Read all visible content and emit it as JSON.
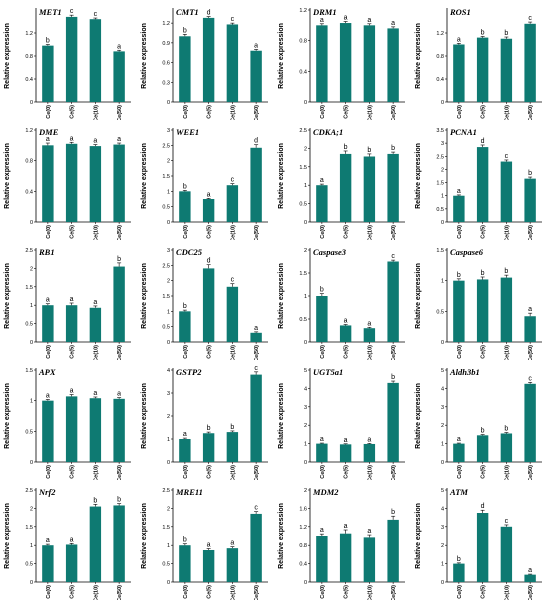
{
  "figure": {
    "ylabel": "Relative expression",
    "categories": [
      "Ce(0)",
      "Ce(5)",
      "Ce(10)",
      "Ce(50)"
    ],
    "bar_color": "#0e7a72"
  },
  "chart_data": [
    {
      "type": "bar",
      "title": "MET1",
      "categories": [
        "Ce(0)",
        "Ce(5)",
        "Ce(10)",
        "Ce(50)"
      ],
      "values": [
        0.98,
        1.48,
        1.44,
        0.88
      ],
      "errors": [
        0.02,
        0.03,
        0.02,
        0.02
      ],
      "letters": [
        "b",
        "c",
        "c",
        "a"
      ],
      "ylim": [
        0,
        1.6
      ],
      "yticks": [
        0,
        0.4,
        0.8,
        1.2
      ],
      "ylabel": "Relative expression"
    },
    {
      "type": "bar",
      "title": "CMT1",
      "categories": [
        "Ce(0)",
        "Ce(5)",
        "Ce(10)",
        "Ce(50)"
      ],
      "values": [
        1.0,
        1.28,
        1.18,
        0.78
      ],
      "errors": [
        0.03,
        0.02,
        0.02,
        0.02
      ],
      "letters": [
        "b",
        "d",
        "c",
        "a"
      ],
      "ylim": [
        0,
        1.4
      ],
      "yticks": [
        0,
        0.3,
        0.6,
        0.9,
        1.2
      ],
      "ylabel": "Relative expression"
    },
    {
      "type": "bar",
      "title": "DRM1",
      "categories": [
        "Ce(0)",
        "Ce(5)",
        "Ce(10)",
        "Ce(50)"
      ],
      "values": [
        1.0,
        1.03,
        1.0,
        0.96
      ],
      "errors": [
        0.02,
        0.02,
        0.02,
        0.02
      ],
      "letters": [
        "a",
        "a",
        "a",
        "a"
      ],
      "ylim": [
        0,
        1.2
      ],
      "yticks": [
        0,
        0.4,
        0.8,
        1.2
      ],
      "ylabel": "Relative expression"
    },
    {
      "type": "bar",
      "title": "ROS1",
      "categories": [
        "Ce(0)",
        "Ce(5)",
        "Ce(10)",
        "Ce(50)"
      ],
      "values": [
        1.0,
        1.12,
        1.1,
        1.36
      ],
      "errors": [
        0.02,
        0.02,
        0.03,
        0.03
      ],
      "letters": [
        "a",
        "b",
        "b",
        "c"
      ],
      "ylim": [
        0,
        1.6
      ],
      "yticks": [
        0,
        0.4,
        0.8,
        1.2
      ],
      "ylabel": "Relative expression"
    },
    {
      "type": "bar",
      "title": "DME",
      "categories": [
        "Ce(0)",
        "Ce(5)",
        "Ce(10)",
        "Ce(50)"
      ],
      "values": [
        1.0,
        1.02,
        0.99,
        1.01
      ],
      "errors": [
        0.03,
        0.02,
        0.02,
        0.02
      ],
      "letters": [
        "a",
        "a",
        "a",
        "a"
      ],
      "ylim": [
        0,
        1.2
      ],
      "yticks": [
        0,
        0.4,
        0.8,
        1.2
      ],
      "ylabel": "Relative expression"
    },
    {
      "type": "bar",
      "title": "WEE1",
      "categories": [
        "Ce(0)",
        "Ce(5)",
        "Ce(10)",
        "Ce(50)"
      ],
      "values": [
        1.0,
        0.75,
        1.2,
        2.42
      ],
      "errors": [
        0.03,
        0.02,
        0.05,
        0.1
      ],
      "letters": [
        "b",
        "a",
        "c",
        "d"
      ],
      "ylim": [
        0,
        3.0
      ],
      "yticks": [
        0,
        0.5,
        1.0,
        1.5,
        2.0,
        2.5,
        3.0
      ],
      "ylabel": "Relative expression"
    },
    {
      "type": "bar",
      "title": "CDKA;1",
      "categories": [
        "Ce(0)",
        "Ce(5)",
        "Ce(10)",
        "Ce(50)"
      ],
      "values": [
        1.0,
        1.85,
        1.78,
        1.85
      ],
      "errors": [
        0.03,
        0.08,
        0.07,
        0.05
      ],
      "letters": [
        "a",
        "b",
        "b",
        "b"
      ],
      "ylim": [
        0,
        2.5
      ],
      "yticks": [
        0,
        0.5,
        1.0,
        1.5,
        2.0,
        2.5
      ],
      "ylabel": "Relative expression"
    },
    {
      "type": "bar",
      "title": "PCNA1",
      "categories": [
        "Ce(0)",
        "Ce(5)",
        "Ce(10)",
        "Ce(50)"
      ],
      "values": [
        1.0,
        2.85,
        2.3,
        1.65
      ],
      "errors": [
        0.03,
        0.08,
        0.06,
        0.06
      ],
      "letters": [
        "a",
        "d",
        "c",
        "b"
      ],
      "ylim": [
        0,
        3.5
      ],
      "yticks": [
        0,
        0.5,
        1.0,
        1.5,
        2.0,
        2.5,
        3.0,
        3.5
      ],
      "ylabel": "Relative expression"
    },
    {
      "type": "bar",
      "title": "RB1",
      "categories": [
        "Ce(0)",
        "Ce(5)",
        "Ce(10)",
        "Ce(50)"
      ],
      "values": [
        1.0,
        1.0,
        0.93,
        2.05
      ],
      "errors": [
        0.04,
        0.06,
        0.05,
        0.1
      ],
      "letters": [
        "a",
        "a",
        "a",
        "b"
      ],
      "ylim": [
        0,
        2.5
      ],
      "yticks": [
        0,
        0.5,
        1.0,
        1.5,
        2.0,
        2.5
      ],
      "ylabel": "Relative expression"
    },
    {
      "type": "bar",
      "title": "CDC25",
      "categories": [
        "Ce(0)",
        "Ce(5)",
        "Ce(10)",
        "Ce(50)"
      ],
      "values": [
        1.0,
        2.4,
        1.8,
        0.3
      ],
      "errors": [
        0.04,
        0.12,
        0.1,
        0.03
      ],
      "letters": [
        "b",
        "d",
        "c",
        "a"
      ],
      "ylim": [
        0,
        3.0
      ],
      "yticks": [
        0,
        0.5,
        1.0,
        1.5,
        2.0,
        2.5,
        3.0
      ],
      "ylabel": "Relative expression"
    },
    {
      "type": "bar",
      "title": "Caspase3",
      "categories": [
        "Ce(0)",
        "Ce(5)",
        "Ce(10)",
        "Ce(50)"
      ],
      "values": [
        1.0,
        0.36,
        0.3,
        1.75
      ],
      "errors": [
        0.05,
        0.02,
        0.02,
        0.03
      ],
      "letters": [
        "b",
        "a",
        "a",
        "c"
      ],
      "ylim": [
        0,
        2.0
      ],
      "yticks": [
        0,
        0.5,
        1.0,
        1.5,
        2.0
      ],
      "ylabel": "Relative expression"
    },
    {
      "type": "bar",
      "title": "Caspase6",
      "categories": [
        "Ce(0)",
        "Ce(5)",
        "Ce(10)",
        "Ce(50)"
      ],
      "values": [
        1.0,
        1.02,
        1.05,
        0.42
      ],
      "errors": [
        0.03,
        0.04,
        0.04,
        0.05
      ],
      "letters": [
        "b",
        "b",
        "b",
        "a"
      ],
      "ylim": [
        0,
        1.5
      ],
      "yticks": [
        0,
        0.5,
        1.0,
        1.5
      ],
      "ylabel": "Relative expression"
    },
    {
      "type": "bar",
      "title": "APX",
      "categories": [
        "Ce(0)",
        "Ce(5)",
        "Ce(10)",
        "Ce(50)"
      ],
      "values": [
        1.0,
        1.07,
        1.04,
        1.03
      ],
      "errors": [
        0.02,
        0.03,
        0.02,
        0.02
      ],
      "letters": [
        "a",
        "a",
        "a",
        "a"
      ],
      "ylim": [
        0,
        1.5
      ],
      "yticks": [
        0,
        0.5,
        1.0,
        1.5
      ],
      "ylabel": "Relative expression"
    },
    {
      "type": "bar",
      "title": "GSTP2",
      "categories": [
        "Ce(0)",
        "Ce(5)",
        "Ce(10)",
        "Ce(50)"
      ],
      "values": [
        1.0,
        1.25,
        1.3,
        3.8
      ],
      "errors": [
        0.04,
        0.05,
        0.05,
        0.12
      ],
      "letters": [
        "a",
        "b",
        "b",
        "c"
      ],
      "ylim": [
        0,
        4
      ],
      "yticks": [
        0,
        1,
        2,
        3,
        4
      ],
      "ylabel": "Relative expression"
    },
    {
      "type": "bar",
      "title": "UGT5a1",
      "categories": [
        "Ce(0)",
        "Ce(5)",
        "Ce(10)",
        "Ce(50)"
      ],
      "values": [
        1.0,
        0.96,
        0.98,
        4.3
      ],
      "errors": [
        0.03,
        0.03,
        0.03,
        0.1
      ],
      "letters": [
        "a",
        "a",
        "a",
        "b"
      ],
      "ylim": [
        0,
        5
      ],
      "yticks": [
        0,
        1,
        2,
        3,
        4,
        5
      ],
      "ylabel": "Relative expression"
    },
    {
      "type": "bar",
      "title": "Aldh3b1",
      "categories": [
        "Ce(0)",
        "Ce(5)",
        "Ce(10)",
        "Ce(50)"
      ],
      "values": [
        1.0,
        1.45,
        1.55,
        4.25
      ],
      "errors": [
        0.03,
        0.04,
        0.05,
        0.08
      ],
      "letters": [
        "a",
        "b",
        "b",
        "c"
      ],
      "ylim": [
        0,
        5
      ],
      "yticks": [
        0,
        1,
        2,
        3,
        4,
        5
      ],
      "ylabel": "Relative expression"
    },
    {
      "type": "bar",
      "title": "Nrf2",
      "categories": [
        "Ce(0)",
        "Ce(5)",
        "Ce(10)",
        "Ce(50)"
      ],
      "values": [
        1.0,
        1.02,
        2.05,
        2.08
      ],
      "errors": [
        0.03,
        0.03,
        0.06,
        0.05
      ],
      "letters": [
        "a",
        "a",
        "b",
        "b"
      ],
      "ylim": [
        0,
        2.5
      ],
      "yticks": [
        0,
        0.5,
        1.0,
        1.5,
        2.0,
        2.5
      ],
      "ylabel": "Relative expression"
    },
    {
      "type": "bar",
      "title": "MRE11",
      "categories": [
        "Ce(0)",
        "Ce(5)",
        "Ce(10)",
        "Ce(50)"
      ],
      "values": [
        1.0,
        0.87,
        0.92,
        1.85
      ],
      "errors": [
        0.04,
        0.04,
        0.04,
        0.06
      ],
      "letters": [
        "b",
        "a",
        "a",
        "c"
      ],
      "ylim": [
        0,
        2.5
      ],
      "yticks": [
        0,
        0.5,
        1.0,
        1.5,
        2.0,
        2.5
      ],
      "ylabel": "Relative expression"
    },
    {
      "type": "bar",
      "title": "MDM2",
      "categories": [
        "Ce(0)",
        "Ce(5)",
        "Ce(10)",
        "Ce(50)"
      ],
      "values": [
        1.0,
        1.05,
        0.97,
        1.35
      ],
      "errors": [
        0.04,
        0.08,
        0.05,
        0.08
      ],
      "letters": [
        "a",
        "a",
        "a",
        "b"
      ],
      "ylim": [
        0,
        2.0
      ],
      "yticks": [
        0,
        0.4,
        0.8,
        1.2,
        1.6,
        2.0
      ],
      "ylabel": "Relative expression"
    },
    {
      "type": "bar",
      "title": "ATM",
      "categories": [
        "Ce(0)",
        "Ce(5)",
        "Ce(10)",
        "Ce(50)"
      ],
      "values": [
        1.0,
        3.75,
        3.0,
        0.4
      ],
      "errors": [
        0.04,
        0.15,
        0.1,
        0.03
      ],
      "letters": [
        "b",
        "d",
        "c",
        "a"
      ],
      "ylim": [
        0,
        5
      ],
      "yticks": [
        0,
        1,
        2,
        3,
        4,
        5
      ],
      "ylabel": "Relative expression"
    }
  ]
}
